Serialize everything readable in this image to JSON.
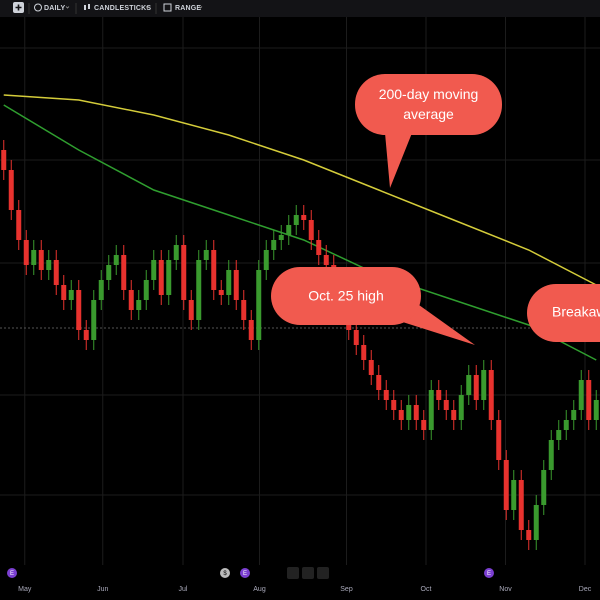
{
  "toolbar": {
    "interval": "DAILY",
    "style": "CANDLESTICKS",
    "range": "RANGE"
  },
  "chart_data": {
    "type": "candlestick",
    "up_color": "#3a9a2e",
    "down_color": "#e8322e",
    "ylim": [
      0,
      112
    ],
    "xlim": [
      -0.5,
      79.5
    ],
    "xticks": [
      {
        "value": 2.8,
        "label": "May"
      },
      {
        "value": 13.2,
        "label": "Jun"
      },
      {
        "value": 23.9,
        "label": "Jul"
      },
      {
        "value": 34.1,
        "label": "Aug"
      },
      {
        "value": 45.7,
        "label": "Sep"
      },
      {
        "value": 56.3,
        "label": "Oct"
      },
      {
        "value": 66.9,
        "label": "Nov"
      },
      {
        "value": 77.5,
        "label": "Dec"
      }
    ],
    "open": [
      86,
      82,
      74,
      68,
      63,
      66,
      62,
      64,
      59,
      56,
      58,
      50,
      48,
      56,
      60,
      63,
      65,
      58,
      54,
      56,
      60,
      64,
      57,
      64,
      67,
      56,
      52,
      64,
      66,
      58,
      57,
      62,
      56,
      52,
      48,
      62,
      66,
      68,
      69,
      71,
      73,
      72,
      68,
      65,
      63,
      60,
      56,
      50,
      47,
      44,
      41,
      38,
      36,
      34,
      32,
      35,
      32,
      30,
      38,
      36,
      34,
      32,
      37,
      41,
      36,
      42,
      32,
      24,
      14,
      20,
      10,
      8,
      15,
      22,
      28,
      30,
      32,
      34,
      40,
      32
    ],
    "high": [
      88,
      84,
      76,
      70,
      68,
      68,
      66,
      66,
      61,
      60,
      60,
      52,
      58,
      62,
      65,
      67,
      67,
      60,
      58,
      62,
      66,
      66,
      66,
      69,
      69,
      58,
      66,
      68,
      68,
      60,
      64,
      64,
      58,
      54,
      64,
      68,
      70,
      71,
      73,
      75,
      75,
      74,
      70,
      67,
      65,
      62,
      58,
      52,
      49,
      46,
      43,
      40,
      38,
      36,
      37,
      37,
      34,
      40,
      40,
      38,
      36,
      39,
      43,
      43,
      44,
      44,
      34,
      26,
      22,
      22,
      12,
      17,
      24,
      30,
      32,
      34,
      36,
      42,
      42,
      38
    ],
    "low": [
      80,
      72,
      66,
      61,
      61,
      60,
      60,
      57,
      54,
      54,
      48,
      46,
      46,
      54,
      58,
      61,
      56,
      52,
      52,
      54,
      58,
      55,
      55,
      62,
      54,
      50,
      50,
      62,
      56,
      55,
      55,
      54,
      50,
      46,
      46,
      60,
      64,
      66,
      67,
      69,
      70,
      66,
      63,
      61,
      58,
      54,
      48,
      45,
      42,
      39,
      36,
      34,
      32,
      30,
      30,
      30,
      28,
      28,
      34,
      32,
      30,
      30,
      35,
      34,
      34,
      30,
      22,
      12,
      12,
      8,
      6,
      6,
      13,
      20,
      26,
      28,
      30,
      32,
      30,
      30
    ],
    "close": [
      82,
      74,
      68,
      63,
      66,
      62,
      64,
      59,
      56,
      58,
      50,
      48,
      56,
      60,
      63,
      65,
      58,
      54,
      56,
      60,
      64,
      57,
      64,
      67,
      56,
      52,
      64,
      66,
      58,
      57,
      62,
      56,
      52,
      48,
      62,
      66,
      68,
      69,
      71,
      73,
      72,
      68,
      65,
      63,
      60,
      56,
      50,
      47,
      44,
      41,
      38,
      36,
      34,
      32,
      35,
      32,
      30,
      38,
      36,
      34,
      32,
      37,
      41,
      36,
      42,
      32,
      24,
      14,
      20,
      10,
      8,
      15,
      22,
      28,
      30,
      32,
      34,
      40,
      32,
      36
    ],
    "lines": [
      {
        "color": "#d4cc3a",
        "x": [
          0,
          10,
          20,
          30,
          40,
          50,
          60,
          70,
          79
        ],
        "values": [
          97,
          96,
          93,
          89,
          84,
          78,
          72,
          66,
          59
        ]
      },
      {
        "color": "#2f9e2f",
        "x": [
          0,
          10,
          20,
          30,
          40,
          50,
          60,
          70,
          79
        ],
        "values": [
          95,
          86,
          78,
          73,
          68,
          61,
          56,
          51,
          44
        ]
      }
    ],
    "annotations": [
      "200-day moving average",
      "Oct. 25 high",
      "Breakaway"
    ],
    "event_markers": [
      "E",
      "$",
      "E",
      "E"
    ]
  }
}
